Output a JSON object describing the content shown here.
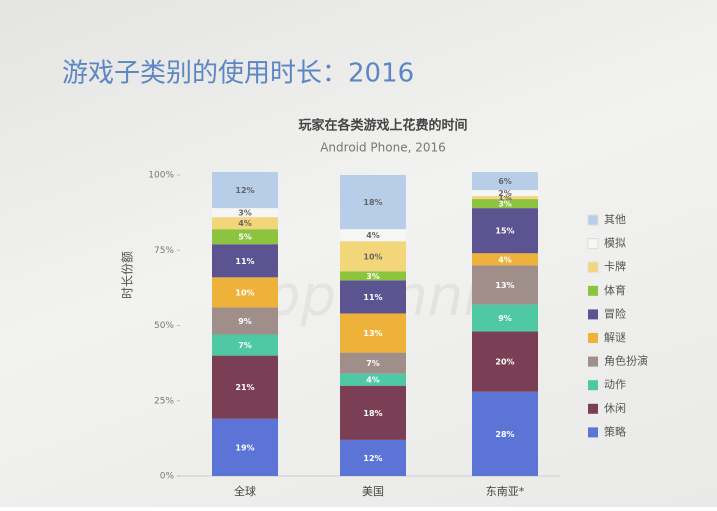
{
  "header": {
    "title": "游戏子类别的使用时长：2016"
  },
  "chart_data": {
    "type": "stacked-bar",
    "title": "玩家在各类游戏上花费的时间",
    "subtitle": "Android Phone, 2016",
    "y_label": "时长份额",
    "watermark": "App Annie",
    "categories": [
      "全球",
      "美国",
      "东南亚*"
    ],
    "ylim": [
      0,
      100
    ],
    "yticks": [
      {
        "value": 0,
        "label": "0%"
      },
      {
        "value": 25,
        "label": "25%"
      },
      {
        "value": 50,
        "label": "50%"
      },
      {
        "value": 75,
        "label": "75%"
      },
      {
        "value": 100,
        "label": "100%"
      }
    ],
    "series": [
      {
        "name": "策略",
        "color": "#5b74d6",
        "values": [
          19,
          12,
          28
        ],
        "value_labels": [
          "19%",
          "12%",
          "28%"
        ]
      },
      {
        "name": "休闲",
        "color": "#7b3f55",
        "values": [
          21,
          18,
          20
        ],
        "value_labels": [
          "21%",
          "18%",
          "20%"
        ]
      },
      {
        "name": "动作",
        "color": "#4fc9a4",
        "values": [
          7,
          4,
          9
        ],
        "value_labels": [
          "7%",
          "4%",
          "9%"
        ]
      },
      {
        "name": "角色扮演",
        "color": "#a08e8a",
        "values": [
          9,
          7,
          13
        ],
        "value_labels": [
          "9%",
          "7%",
          "13%"
        ]
      },
      {
        "name": "解谜",
        "color": "#eeb23a",
        "values": [
          10,
          13,
          4
        ],
        "value_labels": [
          "10%",
          "13%",
          "4%"
        ]
      },
      {
        "name": "冒险",
        "color": "#5c5391",
        "values": [
          11,
          11,
          15
        ],
        "value_labels": [
          "11%",
          "11%",
          "15%"
        ]
      },
      {
        "name": "体育",
        "color": "#8cc440",
        "values": [
          5,
          3,
          3
        ],
        "value_labels": [
          "5%",
          "3%",
          "3%"
        ]
      },
      {
        "name": "卡牌",
        "color": "#f3d57a",
        "values": [
          4,
          10,
          1
        ],
        "value_labels": [
          "4%",
          "10%",
          "1%"
        ]
      },
      {
        "name": "模拟",
        "color": "#f6f6f4",
        "values": [
          3,
          4,
          2
        ],
        "value_labels": [
          "3%",
          "4%",
          "2%"
        ]
      },
      {
        "name": "其他",
        "color": "#b7cde8",
        "values": [
          12,
          18,
          6
        ],
        "value_labels": [
          "12%",
          "18%",
          "6%"
        ]
      }
    ]
  }
}
